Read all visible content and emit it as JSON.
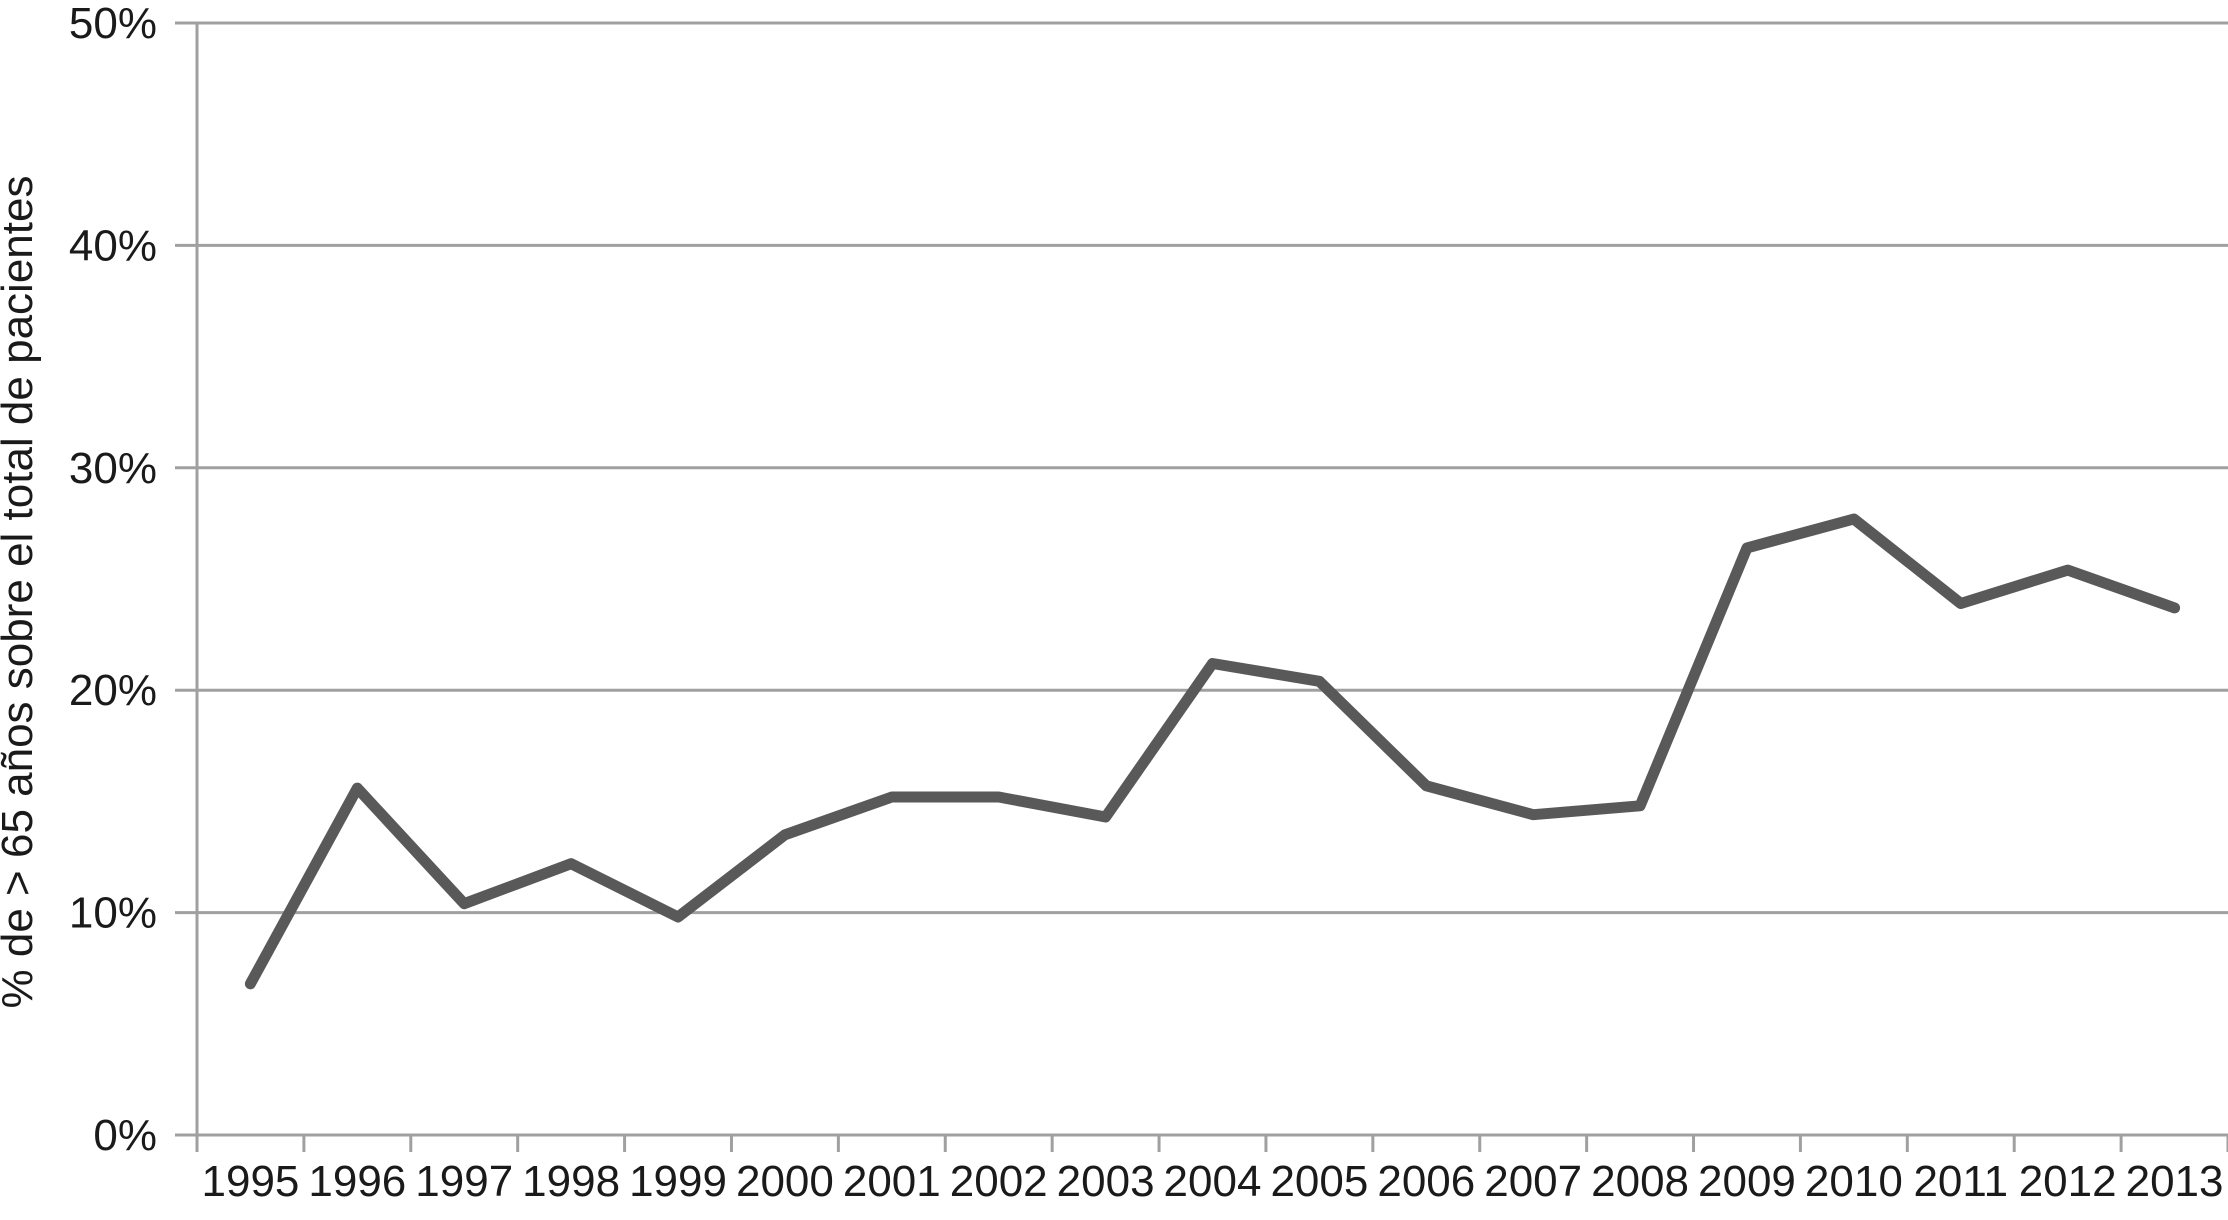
{
  "chart_data": {
    "type": "line",
    "title": "",
    "xlabel": "",
    "ylabel": "% de > 65 años sobre el total de pacientes",
    "categories": [
      "1995",
      "1996",
      "1997",
      "1998",
      "1999",
      "2000",
      "2001",
      "2002",
      "2003",
      "2004",
      "2005",
      "2006",
      "2007",
      "2008",
      "2009",
      "2010",
      "2011",
      "2012",
      "2013"
    ],
    "values": [
      6.8,
      15.6,
      10.4,
      12.2,
      9.8,
      13.5,
      15.2,
      15.2,
      14.3,
      21.2,
      20.4,
      15.7,
      14.4,
      14.8,
      26.4,
      27.7,
      23.9,
      25.4,
      23.7
    ],
    "ylim": [
      0,
      50
    ],
    "ytick_step": 10,
    "ytick_labels": [
      "0%",
      "10%",
      "20%",
      "30%",
      "40%",
      "50%"
    ],
    "grid": true,
    "legend_position": "none",
    "colors": {
      "line": "#595959",
      "grid": "#a0a0a0",
      "axis": "#a0a0a0",
      "text": "#1a1a1a"
    }
  }
}
